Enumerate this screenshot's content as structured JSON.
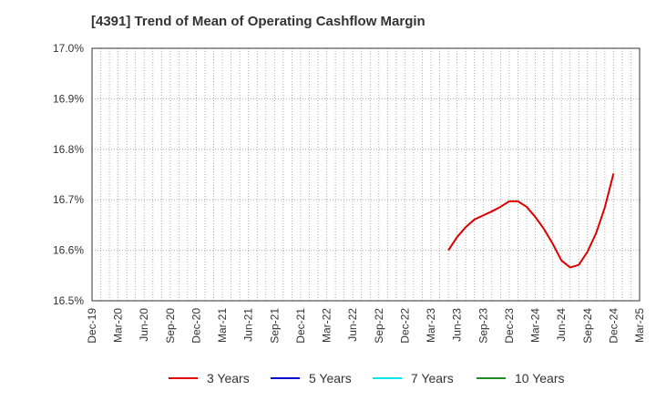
{
  "chart_data": {
    "type": "line",
    "title": "[4391]  Trend of Mean of Operating Cashflow Margin",
    "xlabel": "",
    "ylabel": "",
    "ylim": [
      16.5,
      17.0
    ],
    "yticks": [
      "16.5%",
      "16.6%",
      "16.7%",
      "16.8%",
      "16.9%",
      "17.0%"
    ],
    "ytick_values": [
      16.5,
      16.6,
      16.7,
      16.8,
      16.9,
      17.0
    ],
    "xticks": [
      "Dec-19",
      "Mar-20",
      "Jun-20",
      "Sep-20",
      "Dec-20",
      "Mar-21",
      "Jun-21",
      "Sep-21",
      "Dec-21",
      "Mar-22",
      "Jun-22",
      "Sep-22",
      "Dec-22",
      "Mar-23",
      "Jun-23",
      "Sep-23",
      "Dec-23",
      "Mar-24",
      "Jun-24",
      "Sep-24",
      "Dec-24",
      "Mar-25"
    ],
    "x_start": "Dec-19",
    "x_end": "Mar-25",
    "grid": true,
    "legend_position": "bottom",
    "series": [
      {
        "name": "3 Years",
        "color": "#dd0000",
        "x": [
          "May-23",
          "Jun-23",
          "Jul-23",
          "Aug-23",
          "Sep-23",
          "Oct-23",
          "Nov-23",
          "Dec-23",
          "Jan-24",
          "Feb-24",
          "Mar-24",
          "Apr-24",
          "May-24",
          "Jun-24",
          "Jul-24",
          "Aug-24",
          "Sep-24",
          "Oct-24",
          "Nov-24",
          "Dec-24"
        ],
        "values": [
          16.6,
          16.626,
          16.646,
          16.661,
          16.669,
          16.677,
          16.686,
          16.697,
          16.697,
          16.686,
          16.666,
          16.642,
          16.613,
          16.58,
          16.566,
          16.571,
          16.597,
          16.634,
          16.685,
          16.752
        ]
      },
      {
        "name": "5 Years",
        "color": "#0000cc",
        "x": [],
        "values": []
      },
      {
        "name": "7 Years",
        "color": "#00e5ee",
        "x": [],
        "values": []
      },
      {
        "name": "10 Years",
        "color": "#228b22",
        "x": [],
        "values": []
      }
    ]
  }
}
